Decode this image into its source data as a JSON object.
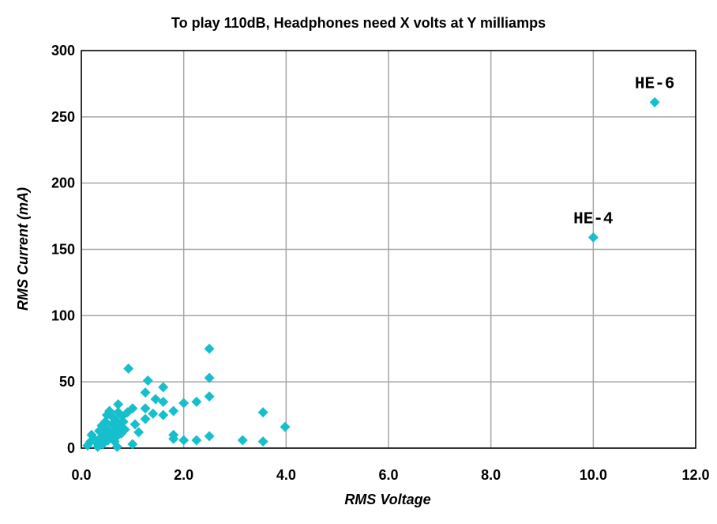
{
  "chart_data": {
    "type": "scatter",
    "title": "To play 110dB, Headphones need X volts at Y milliamps",
    "xlabel": "RMS Voltage",
    "ylabel": "RMS Current (mA)",
    "xlim": [
      0,
      12
    ],
    "ylim": [
      0,
      300
    ],
    "xticks": [
      "0.0",
      "2.0",
      "4.0",
      "6.0",
      "8.0",
      "10.0",
      "12.0"
    ],
    "yticks": [
      "0",
      "50",
      "100",
      "150",
      "200",
      "250",
      "300"
    ],
    "grid": true,
    "legend": "none",
    "marker": "diamond",
    "colors": {
      "marker": "#17bfcd",
      "grid": "#a6a6a6",
      "axis": "#000000"
    },
    "series": [
      {
        "points": [
          [
            0.12,
            2
          ],
          [
            0.18,
            5
          ],
          [
            0.2,
            10
          ],
          [
            0.25,
            7
          ],
          [
            0.3,
            4
          ],
          [
            0.32,
            1
          ],
          [
            0.35,
            13
          ],
          [
            0.38,
            8
          ],
          [
            0.4,
            17
          ],
          [
            0.42,
            3
          ],
          [
            0.45,
            11
          ],
          [
            0.47,
            20
          ],
          [
            0.5,
            14
          ],
          [
            0.5,
            25
          ],
          [
            0.52,
            6
          ],
          [
            0.55,
            28
          ],
          [
            0.58,
            10
          ],
          [
            0.6,
            18
          ],
          [
            0.62,
            23
          ],
          [
            0.65,
            13
          ],
          [
            0.67,
            8
          ],
          [
            0.7,
            20
          ],
          [
            0.72,
            27
          ],
          [
            0.72,
            33
          ],
          [
            0.75,
            16
          ],
          [
            0.78,
            11
          ],
          [
            0.8,
            24
          ],
          [
            0.82,
            20
          ],
          [
            0.85,
            14
          ],
          [
            0.9,
            27
          ],
          [
            0.92,
            60
          ],
          [
            0.7,
            1
          ],
          [
            0.65,
            5
          ],
          [
            1.0,
            3
          ],
          [
            1.05,
            18
          ],
          [
            1.0,
            30
          ],
          [
            1.12,
            12
          ],
          [
            1.25,
            22
          ],
          [
            1.25,
            30
          ],
          [
            1.25,
            42
          ],
          [
            1.3,
            51
          ],
          [
            1.4,
            26
          ],
          [
            1.45,
            37
          ],
          [
            1.6,
            25
          ],
          [
            1.6,
            35
          ],
          [
            1.6,
            46
          ],
          [
            1.8,
            7
          ],
          [
            1.8,
            10
          ],
          [
            1.8,
            28
          ],
          [
            2.0,
            6
          ],
          [
            2.0,
            34
          ],
          [
            2.25,
            6
          ],
          [
            2.25,
            35
          ],
          [
            2.5,
            9
          ],
          [
            2.5,
            39
          ],
          [
            2.5,
            53
          ],
          [
            2.5,
            75
          ],
          [
            3.15,
            6
          ],
          [
            3.55,
            5
          ],
          [
            3.55,
            27
          ],
          [
            3.98,
            16
          ],
          [
            10.0,
            159
          ],
          [
            11.2,
            261
          ]
        ]
      }
    ],
    "annotations": [
      {
        "text": "HE-4",
        "x": 10.0,
        "y": 159
      },
      {
        "text": "HE-6",
        "x": 11.2,
        "y": 261
      }
    ]
  }
}
